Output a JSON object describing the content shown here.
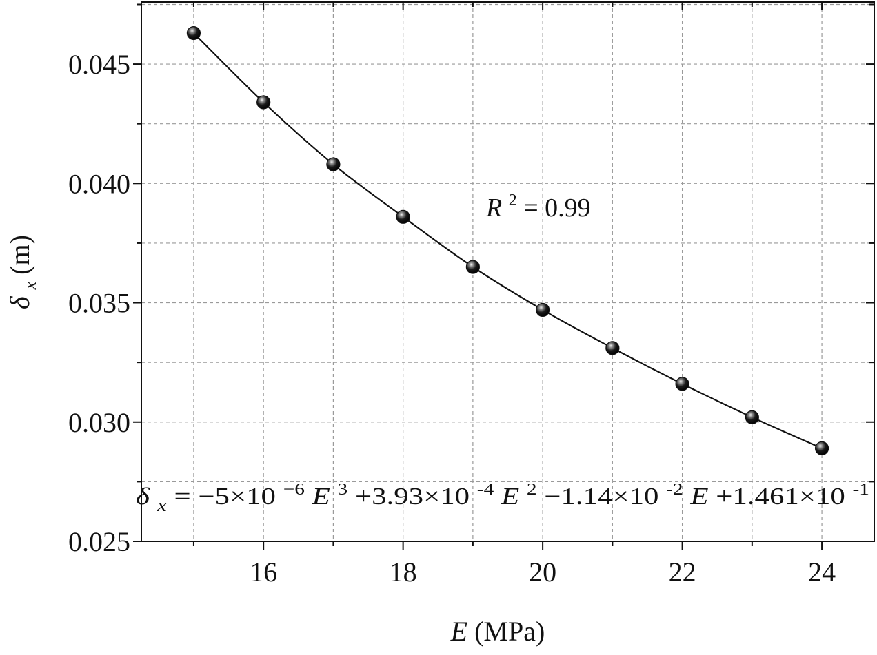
{
  "chart_data": {
    "type": "scatter",
    "title": "",
    "xlabel": {
      "symbol": "E",
      "unit": "(MPa)"
    },
    "ylabel": {
      "symbol": "δ",
      "subscript": "x",
      "unit": "(m)"
    },
    "xlim": [
      14.25,
      24.75
    ],
    "ylim": [
      0.025,
      0.0476
    ],
    "x_ticks": [
      16,
      18,
      20,
      22,
      24
    ],
    "x_tick_labels": [
      "16",
      "18",
      "20",
      "22",
      "24"
    ],
    "x_minor_ticks": [
      15,
      17,
      19,
      21,
      23
    ],
    "y_ticks": [
      0.025,
      0.03,
      0.035,
      0.04,
      0.045
    ],
    "y_tick_labels": [
      "0.025",
      "0.030",
      "0.035",
      "0.040",
      "0.045"
    ],
    "y_minor_ticks": [
      0.0275,
      0.0325,
      0.0375,
      0.0425,
      0.0475
    ],
    "grid": true,
    "series": [
      {
        "name": "",
        "x": [
          15,
          16,
          17,
          18,
          19,
          20,
          21,
          22,
          23,
          24
        ],
        "y": [
          0.0463,
          0.0434,
          0.0408,
          0.0386,
          0.0365,
          0.0347,
          0.0331,
          0.0316,
          0.0302,
          0.0289
        ],
        "marker": "sphere",
        "color": "#111111"
      }
    ],
    "fit": {
      "type": "cubic",
      "coefficients": {
        "a3": -5e-06,
        "a2": 0.000393,
        "a1": -0.0114,
        "a0": 0.1461
      },
      "color": "#111111"
    },
    "annotations": {
      "r_squared": {
        "symbol": "R",
        "power": "2",
        "text": " = 0.99"
      },
      "equation": {
        "lhs_symbol": "δ",
        "lhs_subscript": "x",
        "t1_coef": " = −5×10",
        "t1_exp": "−6",
        "t1_var": " E",
        "t1_pow": "3",
        "t2_coef": " +3.93×10",
        "t2_exp": "-4",
        "t2_var": " E",
        "t2_pow": "2",
        "t3_coef": " −1.14×10",
        "t3_exp": "-2",
        "t3_var": " E",
        "t4_coef": " +1.461×10",
        "t4_exp": "-1"
      }
    }
  }
}
